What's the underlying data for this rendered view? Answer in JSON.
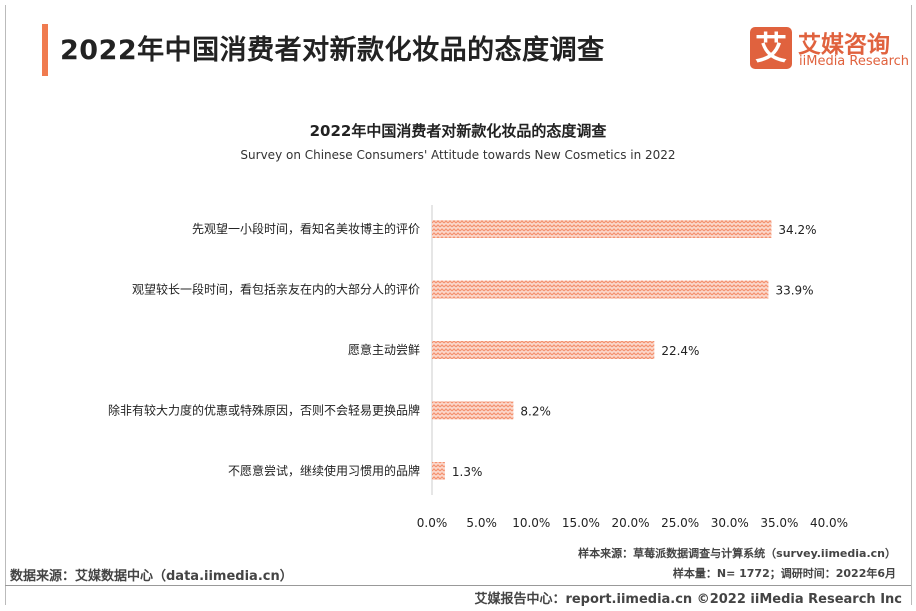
{
  "header": {
    "title": "2022年中国消费者对新款化妆品的态度调查",
    "logo_mark": "艾",
    "logo_cn": "艾媒咨询",
    "logo_en": "iiMedia Research"
  },
  "chart_data": {
    "type": "bar",
    "orientation": "horizontal",
    "title": "2022年中国消费者对新款化妆品的态度调查",
    "subtitle": "Survey on Chinese Consumers' Attitude towards New Cosmetics in 2022",
    "categories": [
      "先观望一小段时间，看知名美妆博主的评价",
      "观望较长一段时间，看包括亲友在内的大部分人的评价",
      "愿意主动尝鲜",
      "除非有较大力度的优惠或特殊原因，否则不会轻易更换品牌",
      "不愿意尝试，继续使用习惯用的品牌"
    ],
    "values": [
      34.2,
      33.9,
      22.4,
      8.2,
      1.3
    ],
    "data_labels": [
      "34.2%",
      "33.9%",
      "22.4%",
      "8.2%",
      "1.3%"
    ],
    "xlim": [
      0,
      40
    ],
    "xticks": [
      "0.0%",
      "5.0%",
      "10.0%",
      "15.0%",
      "20.0%",
      "25.0%",
      "30.0%",
      "35.0%",
      "40.0%"
    ],
    "grid": false,
    "bar_color": "#f4a189"
  },
  "footer": {
    "source_left": "数据来源：艾媒数据中心（data.iimedia.cn）",
    "sample_source": "样本来源：草莓派数据调查与计算系统（survey.iimedia.cn）",
    "sample_info": "样本量：N= 1772；调研时间：2022年6月",
    "report": "艾媒报告中心：report.iimedia.cn   ©2022  iiMedia Research  Inc"
  }
}
